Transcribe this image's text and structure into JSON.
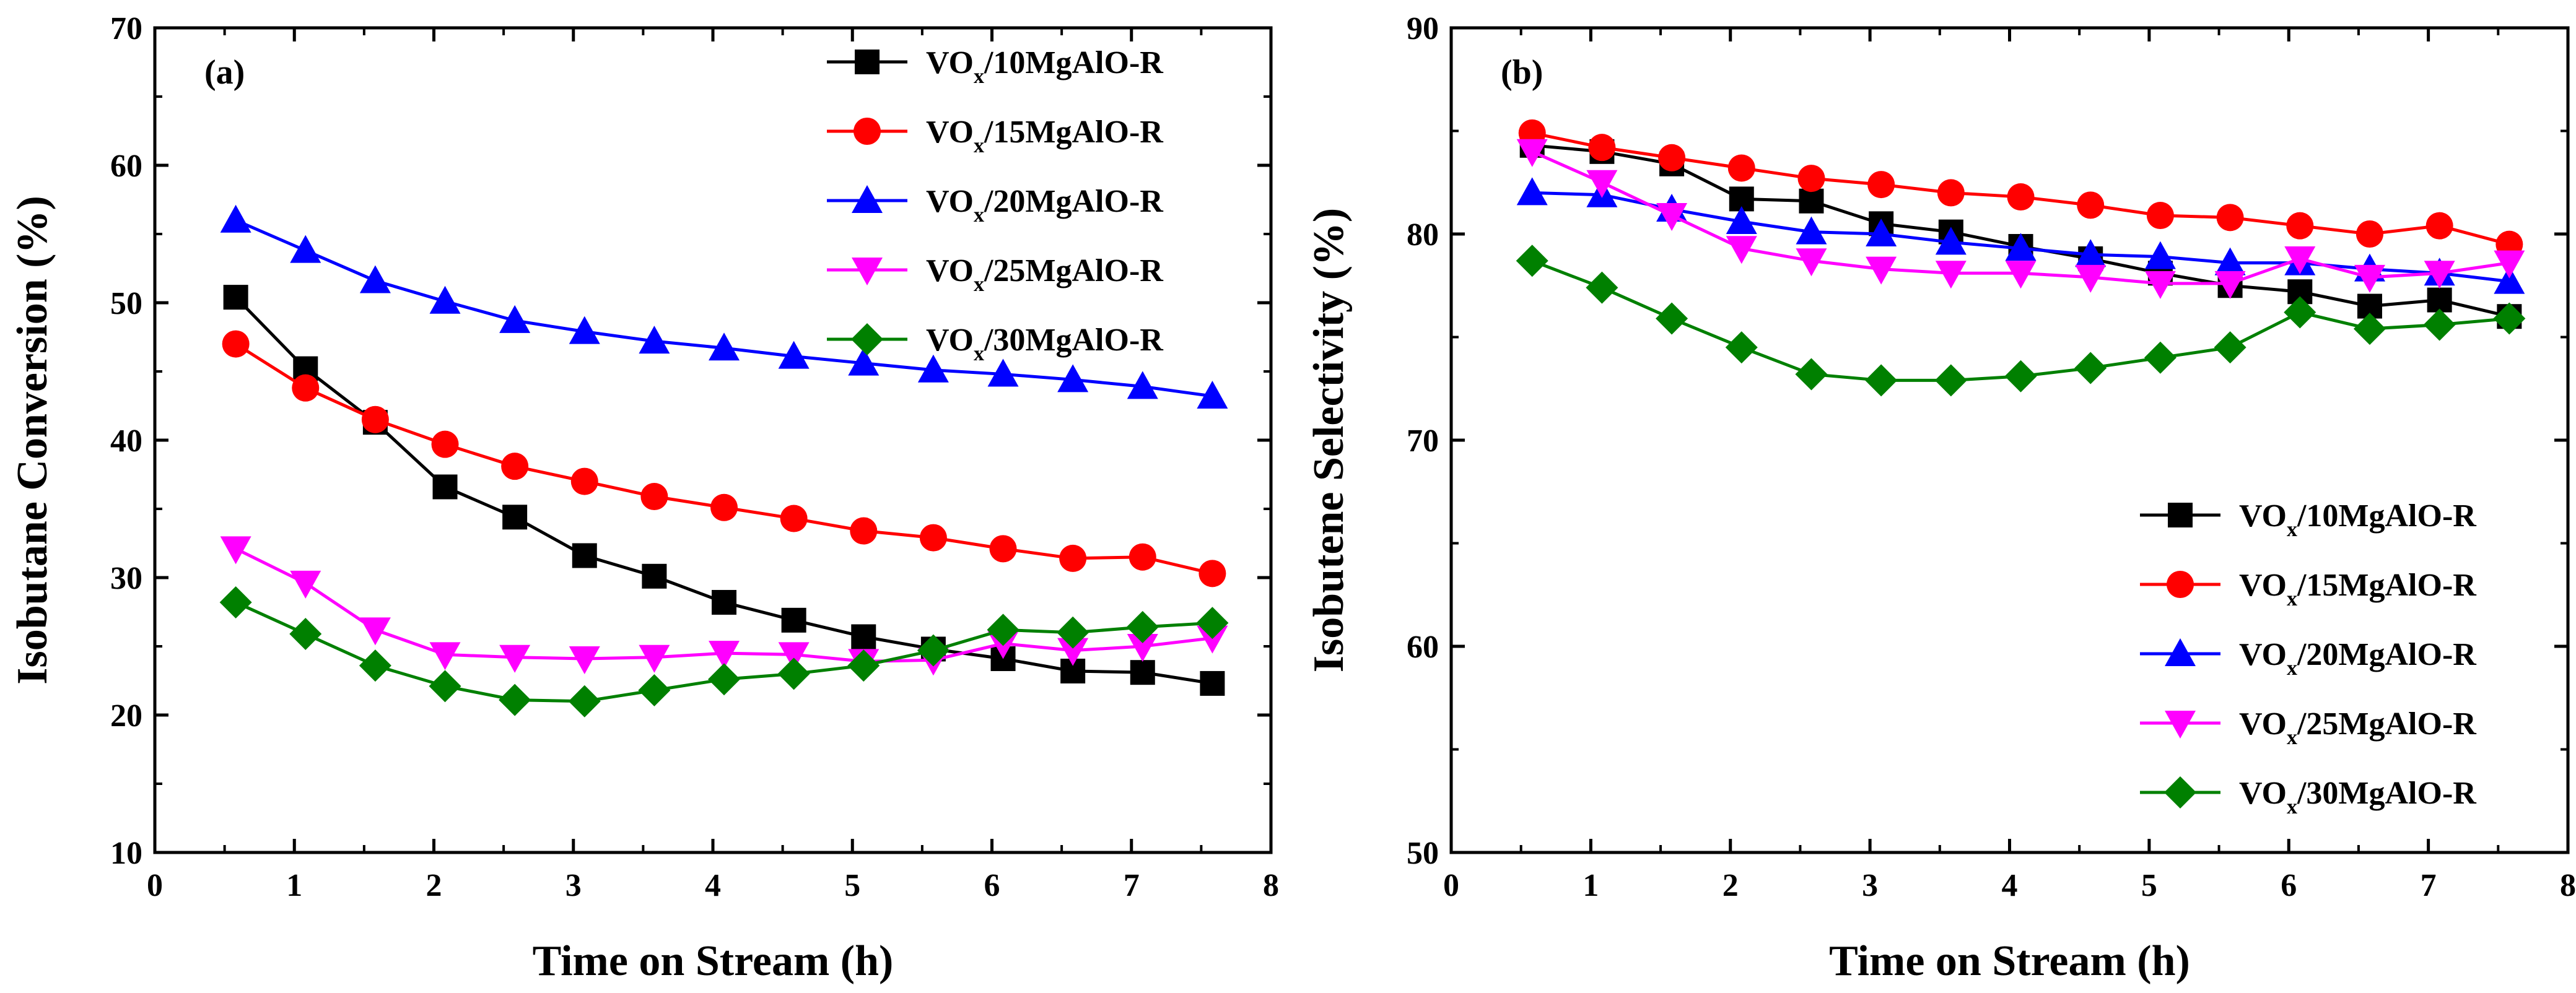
{
  "chart_data": [
    {
      "type": "line",
      "panel_label": "(a)",
      "xlabel": "Time on Stream (h)",
      "ylabel": "Isobutane Conversion (%)",
      "xlim": [
        0,
        8
      ],
      "ylim": [
        10,
        70
      ],
      "xticks": [
        0,
        1,
        2,
        3,
        4,
        5,
        6,
        7,
        8
      ],
      "yticks": [
        10,
        20,
        30,
        40,
        50,
        60,
        70
      ],
      "xtick_labels": [
        "0",
        "1",
        "2",
        "3",
        "4",
        "5",
        "6",
        "7",
        "8"
      ],
      "ytick_labels": [
        "10",
        "20",
        "30",
        "40",
        "50",
        "60",
        "70"
      ],
      "grid": false,
      "legend_position": "top-right",
      "x": [
        0.58,
        1.08,
        1.58,
        2.08,
        2.58,
        3.08,
        3.58,
        4.08,
        4.58,
        5.08,
        5.58,
        6.08,
        6.58,
        7.08,
        7.58
      ],
      "series": [
        {
          "name_prefix": "VO",
          "name_sub": "x",
          "name_suffix": "/10MgAlO-R",
          "color": "#000000",
          "marker": "square",
          "values": [
            50.4,
            45.2,
            41.3,
            36.6,
            34.4,
            31.6,
            30.1,
            28.2,
            26.9,
            25.7,
            24.8,
            24.1,
            23.2,
            23.1,
            22.3
          ]
        },
        {
          "name_prefix": "VO",
          "name_sub": "x",
          "name_suffix": "/15MgAlO-R",
          "color": "#ff0000",
          "marker": "circle",
          "values": [
            47.0,
            43.8,
            41.5,
            39.7,
            38.1,
            37.0,
            35.9,
            35.1,
            34.3,
            33.4,
            32.9,
            32.1,
            31.4,
            31.5,
            30.3
          ]
        },
        {
          "name_prefix": "VO",
          "name_sub": "x",
          "name_suffix": "/20MgAlO-R",
          "color": "#0000ff",
          "marker": "triangle-up",
          "values": [
            56.0,
            53.8,
            51.6,
            50.1,
            48.7,
            47.9,
            47.2,
            46.7,
            46.1,
            45.6,
            45.1,
            44.8,
            44.4,
            43.9,
            43.2
          ]
        },
        {
          "name_prefix": "VO",
          "name_sub": "x",
          "name_suffix": "/25MgAlO-R",
          "color": "#ff00ff",
          "marker": "triangle-down",
          "values": [
            32.1,
            29.6,
            26.2,
            24.4,
            24.2,
            24.1,
            24.2,
            24.5,
            24.4,
            23.9,
            24.0,
            25.2,
            24.7,
            25.0,
            25.6
          ]
        },
        {
          "name_prefix": "VO",
          "name_sub": "x",
          "name_suffix": "/30MgAlO-R",
          "color": "#008000",
          "marker": "diamond",
          "values": [
            28.2,
            25.9,
            23.6,
            22.1,
            21.1,
            21.0,
            21.8,
            22.6,
            23.0,
            23.6,
            24.7,
            26.2,
            26.0,
            26.4,
            26.7
          ]
        }
      ]
    },
    {
      "type": "line",
      "panel_label": "(b)",
      "xlabel": "Time on Stream (h)",
      "ylabel": "Isobutene Selectivity (%)",
      "xlim": [
        0,
        8
      ],
      "ylim": [
        50,
        90
      ],
      "xticks": [
        0,
        1,
        2,
        3,
        4,
        5,
        6,
        7,
        8
      ],
      "yticks": [
        50,
        60,
        70,
        80,
        90
      ],
      "xtick_labels": [
        "0",
        "1",
        "2",
        "3",
        "4",
        "5",
        "6",
        "7",
        "8"
      ],
      "ytick_labels": [
        "50",
        "60",
        "70",
        "80",
        "90"
      ],
      "grid": false,
      "legend_position": "bottom-right",
      "x": [
        0.58,
        1.08,
        1.58,
        2.08,
        2.58,
        3.08,
        3.58,
        4.08,
        4.58,
        5.08,
        5.58,
        6.08,
        6.58,
        7.08,
        7.58
      ],
      "series": [
        {
          "name_prefix": "VO",
          "name_sub": "x",
          "name_suffix": "/10MgAlO-R",
          "color": "#000000",
          "marker": "square",
          "values": [
            84.3,
            84.0,
            83.4,
            81.7,
            81.6,
            80.5,
            80.1,
            79.4,
            78.8,
            78.1,
            77.5,
            77.2,
            76.5,
            76.8,
            76.0
          ]
        },
        {
          "name_prefix": "VO",
          "name_sub": "x",
          "name_suffix": "/15MgAlO-R",
          "color": "#ff0000",
          "marker": "circle",
          "values": [
            84.9,
            84.2,
            83.7,
            83.2,
            82.7,
            82.4,
            82.0,
            81.8,
            81.4,
            80.9,
            80.8,
            80.4,
            80.0,
            80.4,
            79.5
          ]
        },
        {
          "name_prefix": "VO",
          "name_sub": "x",
          "name_suffix": "/20MgAlO-R",
          "color": "#0000ff",
          "marker": "triangle-up",
          "values": [
            82.0,
            81.9,
            81.2,
            80.6,
            80.1,
            80.0,
            79.6,
            79.3,
            79.0,
            78.9,
            78.6,
            78.6,
            78.3,
            78.1,
            77.7
          ]
        },
        {
          "name_prefix": "VO",
          "name_sub": "x",
          "name_suffix": "/25MgAlO-R",
          "color": "#ff00ff",
          "marker": "triangle-down",
          "values": [
            84.0,
            82.5,
            80.9,
            79.3,
            78.7,
            78.3,
            78.1,
            78.1,
            77.9,
            77.6,
            77.6,
            78.8,
            77.9,
            78.1,
            78.6
          ]
        },
        {
          "name_prefix": "VO",
          "name_sub": "x",
          "name_suffix": "/30MgAlO-R",
          "color": "#008000",
          "marker": "diamond",
          "values": [
            78.7,
            77.4,
            75.9,
            74.5,
            73.2,
            72.9,
            72.9,
            73.1,
            73.5,
            74.0,
            74.5,
            76.2,
            75.4,
            75.6,
            75.9
          ]
        }
      ]
    }
  ]
}
